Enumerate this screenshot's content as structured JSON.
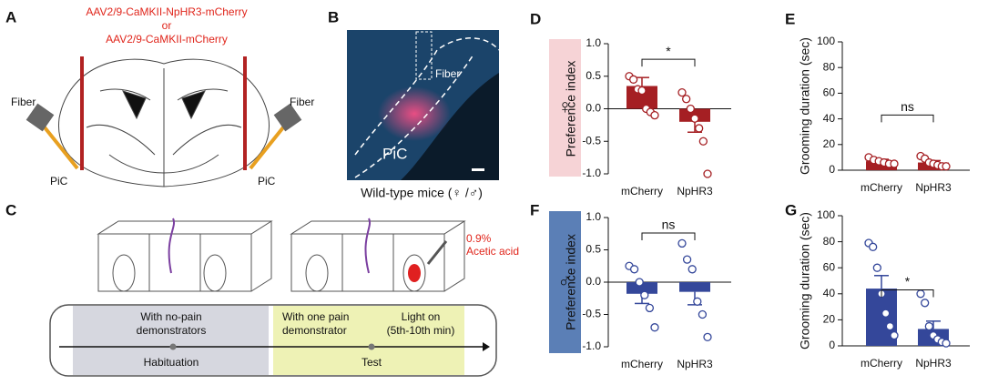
{
  "figure": {
    "letters": [
      "A",
      "B",
      "C"
    ],
    "virus1": "AAV2/9-CaMKII-NpHR3-mCherry",
    "or": "or",
    "virus2": "AAV2/9-CaMKII-mCherry",
    "fiber_left": "Fiber",
    "fiber_right": "Fiber",
    "pic_left": "PiC",
    "pic_right": "PiC",
    "b_pic": "PiC",
    "b_fiber": "Fiber",
    "b_caption": "Wild-type mice (♀ /♂)",
    "acid_pct": "0.9%",
    "acid": "Acetic acid",
    "hab_line1": "With no-pain",
    "hab_line2": "demonstrators",
    "test_line1": "With one pain",
    "test_line2": "demonstrator",
    "light_line1": "Light on",
    "light_line2": "(5th-10th min)",
    "hab": "Habituation",
    "test": "Test"
  },
  "chart_data": [
    {
      "type": "bar",
      "panel": "D",
      "side_label": "♀",
      "ylabel": "Preference index",
      "annotation": "*",
      "color": "#a51f23",
      "categories": [
        "mCherry",
        "NpHR3"
      ],
      "values": [
        0.35,
        -0.2
      ],
      "errors": [
        0.13,
        0.16
      ],
      "points": [
        [
          0.5,
          0.45,
          0.3,
          0.28,
          0.0,
          -0.05,
          -0.1
        ],
        [
          0.25,
          0.15,
          0.0,
          -0.15,
          -0.3,
          -0.5,
          -1.0
        ]
      ],
      "ylim": [
        -1,
        1
      ],
      "yticks": [
        {
          "value": -1,
          "label": "-1.0"
        },
        -0.5,
        {
          "value": 0,
          "label": "0.0"
        },
        0.5,
        {
          "value": 1,
          "label": "1.0"
        }
      ]
    },
    {
      "type": "bar",
      "panel": "E",
      "ylabel": "Grooming duration (sec)",
      "annotation": "ns",
      "color": "#a51f23",
      "categories": [
        "mCherry",
        "NpHR3"
      ],
      "values": [
        7,
        6
      ],
      "errors": [
        1.5,
        1.5
      ],
      "points": [
        [
          10,
          8,
          7,
          6,
          5,
          5
        ],
        [
          11,
          9,
          6,
          5,
          4,
          3,
          3
        ]
      ],
      "ylim": [
        0,
        100
      ],
      "yticks": [
        0,
        20,
        40,
        60,
        80,
        100
      ]
    },
    {
      "type": "bar",
      "panel": "F",
      "side_label": "♂",
      "ylabel": "Preference index",
      "annotation": "ns",
      "color": "#34479a",
      "categories": [
        "mCherry",
        "NpHR3"
      ],
      "values": [
        -0.18,
        -0.15
      ],
      "errors": [
        0.15,
        0.2
      ],
      "points": [
        [
          0.25,
          0.2,
          0.0,
          -0.2,
          -0.4,
          -0.7
        ],
        [
          0.6,
          0.35,
          0.2,
          -0.3,
          -0.5,
          -0.85
        ]
      ],
      "ylim": [
        -1,
        1
      ],
      "yticks": [
        {
          "value": -1,
          "label": "-1.0"
        },
        -0.5,
        {
          "value": 0,
          "label": "0.0"
        },
        0.5,
        {
          "value": 1,
          "label": "1.0"
        }
      ]
    },
    {
      "type": "bar",
      "panel": "G",
      "ylabel": "Grooming duration (sec)",
      "annotation": "*",
      "color": "#34479a",
      "categories": [
        "mCherry",
        "NpHR3"
      ],
      "values": [
        44,
        13
      ],
      "errors": [
        10,
        6
      ],
      "points": [
        [
          79,
          76,
          60,
          40,
          25,
          15,
          8
        ],
        [
          40,
          33,
          15,
          8,
          5,
          3,
          2
        ]
      ],
      "ylim": [
        0,
        100
      ],
      "yticks": [
        0,
        20,
        40,
        60,
        80,
        100
      ]
    }
  ]
}
